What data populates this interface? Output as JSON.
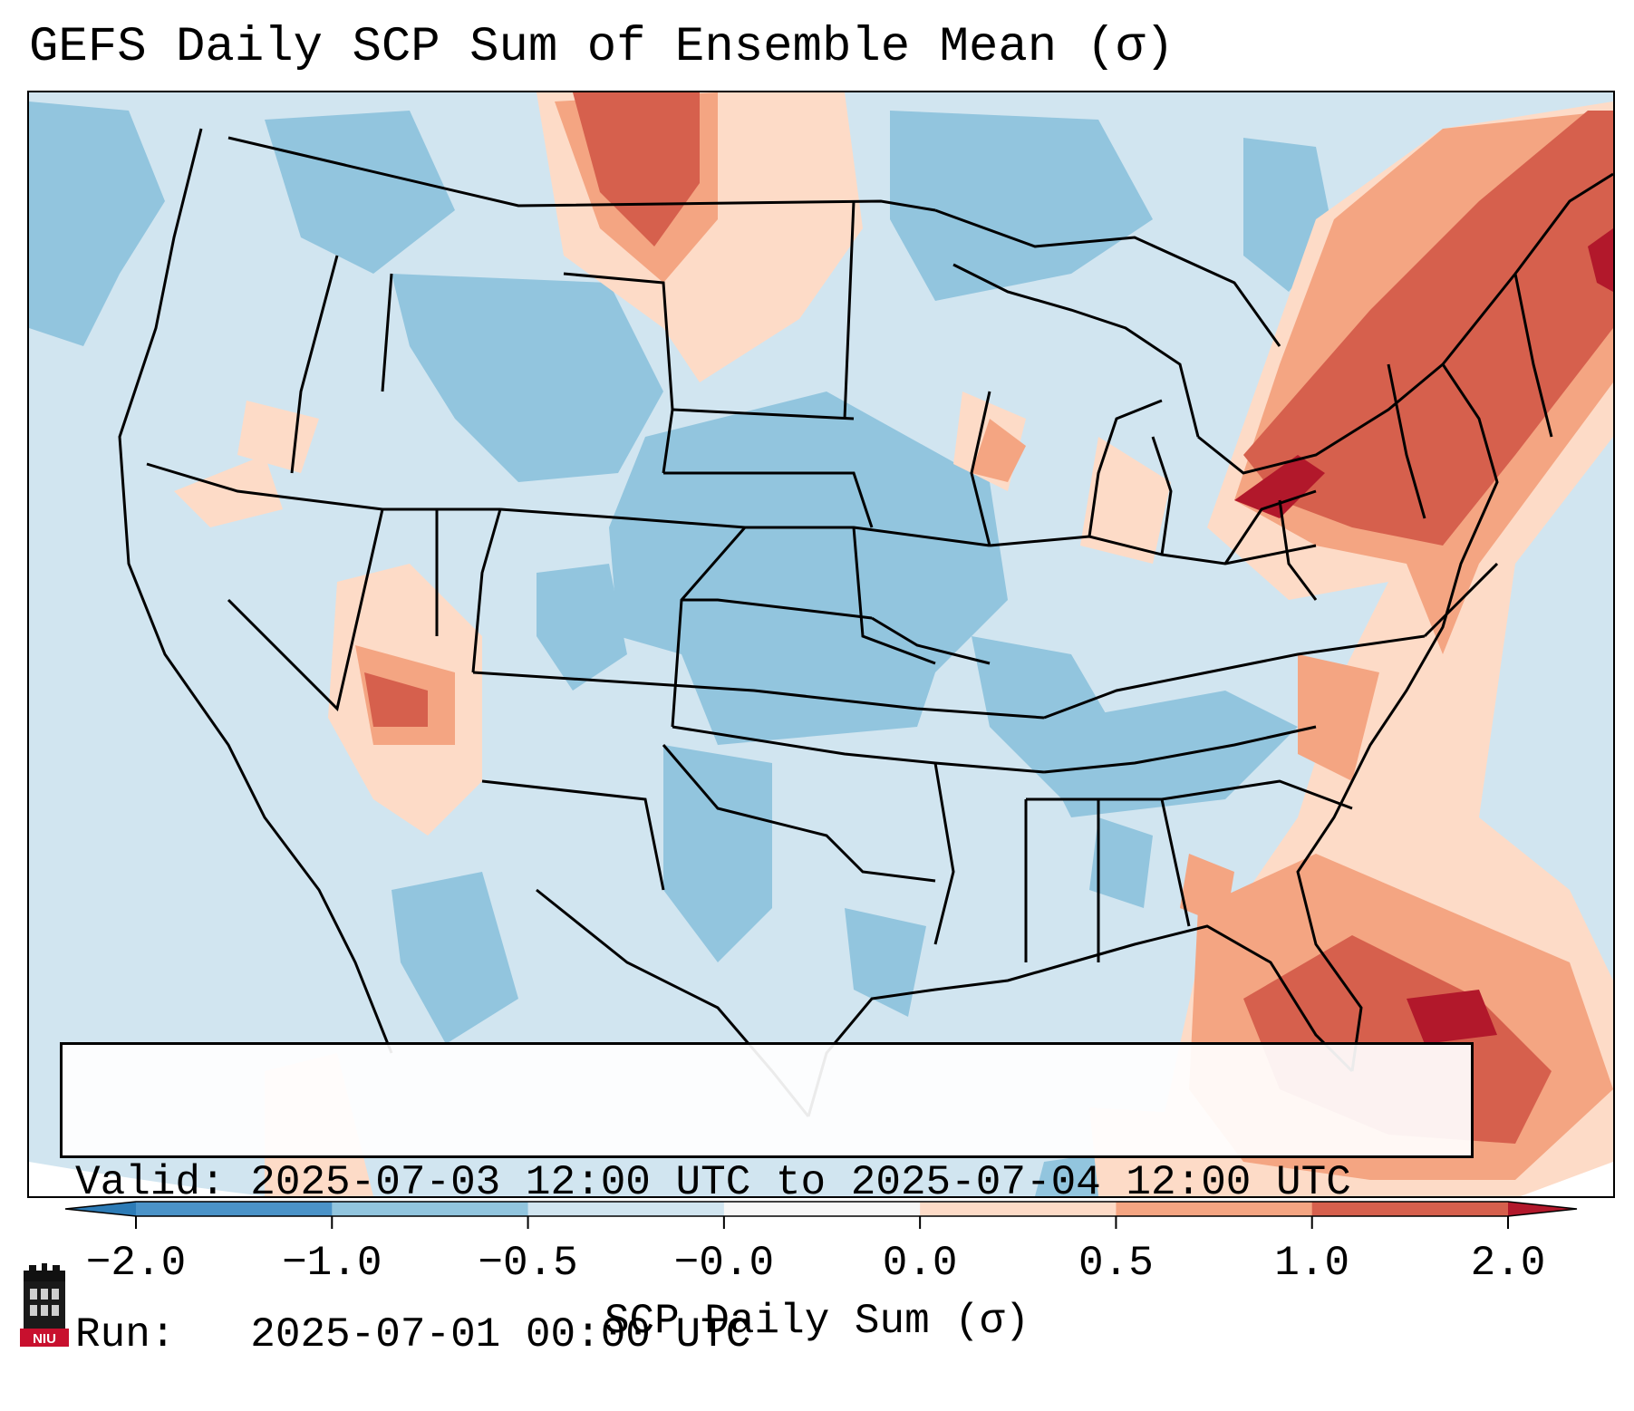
{
  "title": "GEFS Daily SCP Sum of Ensemble Mean (σ)",
  "info": {
    "valid_line": "Valid: 2025-07-03 12:00 UTC to 2025-07-04 12:00 UTC",
    "run_line": "Run:   2025-07-01 00:00 UTC"
  },
  "colorbar": {
    "label": "SCP Daily Sum (σ)",
    "ticks": [
      "−2.0",
      "−1.0",
      "−0.5",
      "−0.0",
      "0.0",
      "0.5",
      "1.0",
      "2.0"
    ],
    "bins": [
      {
        "range": "<-2.0",
        "color": "#2c7bb6"
      },
      {
        "range": "-2.0 to -1.0",
        "color": "#4b93c8"
      },
      {
        "range": "-1.0 to -0.5",
        "color": "#92c5de"
      },
      {
        "range": "-0.5 to -0.0",
        "color": "#d1e5f0"
      },
      {
        "range": "-0.0 to 0.0",
        "color": "#f7f7f7"
      },
      {
        "range": "0.0 to 0.5",
        "color": "#fddbc7"
      },
      {
        "range": "0.5 to 1.0",
        "color": "#f4a582"
      },
      {
        "range": "1.0 to 2.0",
        "color": "#d6604d"
      },
      {
        "range": ">2.0",
        "color": "#b2182b"
      }
    ]
  },
  "logo": {
    "text": "NIU",
    "icon": "niu-logo-icon"
  },
  "map": {
    "field": "SCP daily sum anomaly (σ)",
    "regions": [
      {
        "name": "Northeast US / New England",
        "level": "1.0 to 2.0"
      },
      {
        "name": "Lake Erie / upstate New York",
        "level": ">2.0"
      },
      {
        "name": "Florida / Bahamas",
        "level": "1.0 to 2.0"
      },
      {
        "name": "Central Plains",
        "level": "-1.0 to -0.5"
      },
      {
        "name": "Southern Canada Prairies",
        "level": "0.5 to 1.0"
      },
      {
        "name": "Four Corners",
        "level": "0.5 to 1.0"
      }
    ]
  }
}
